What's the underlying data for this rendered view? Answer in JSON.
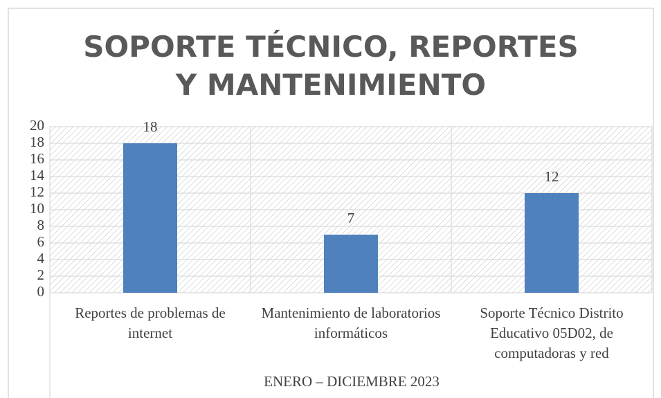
{
  "chart_data": {
    "type": "bar",
    "title": "SOPORTE TÉCNICO, REPORTES Y MANTENIMIENTO",
    "categories": [
      "Reportes de problemas de internet",
      "Mantenimiento de laboratorios informáticos",
      "Soporte Técnico Distrito Educativo 05D02, de computadoras y red"
    ],
    "values": [
      18,
      7,
      12
    ],
    "color": "#4f81bd",
    "x_label": "ENERO – DICIEMBRE 2023",
    "ylim": [
      0,
      20
    ],
    "yticks": [
      0,
      2,
      4,
      6,
      8,
      10,
      12,
      14,
      16,
      18,
      20
    ],
    "grid": true
  }
}
